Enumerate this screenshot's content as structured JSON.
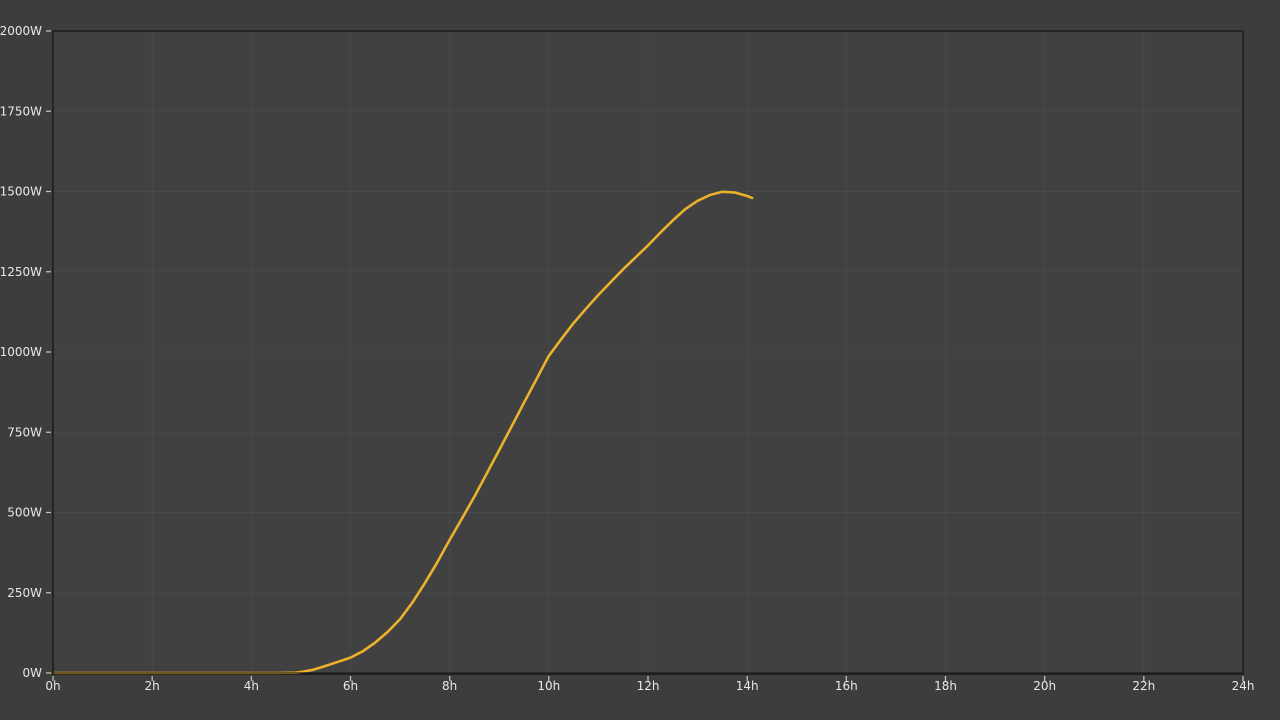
{
  "colors": {
    "page_background": "#3d3d3d",
    "plot_background": "#414141",
    "border": "#242424",
    "gridline": "rgba(255,255,255,0.045)",
    "tick_mark": "#c8c8c8",
    "tick_label": "#e8e8e8",
    "series_line": "#ecb22c",
    "baseline_dim_overlay": "rgba(26,26,26,0.6)"
  },
  "chart_data": {
    "type": "line",
    "title": "",
    "xlabel": "",
    "ylabel": "",
    "x_unit": "h",
    "y_unit": "W",
    "xlim": [
      0,
      24
    ],
    "ylim": [
      0,
      2000
    ],
    "grid": true,
    "legend": "none",
    "x_ticks": [
      {
        "value": 0,
        "label": "0h"
      },
      {
        "value": 2,
        "label": "2h"
      },
      {
        "value": 4,
        "label": "4h"
      },
      {
        "value": 6,
        "label": "6h"
      },
      {
        "value": 8,
        "label": "8h"
      },
      {
        "value": 10,
        "label": "10h"
      },
      {
        "value": 12,
        "label": "12h"
      },
      {
        "value": 14,
        "label": "14h"
      },
      {
        "value": 16,
        "label": "16h"
      },
      {
        "value": 18,
        "label": "18h"
      },
      {
        "value": 20,
        "label": "20h"
      },
      {
        "value": 22,
        "label": "22h"
      },
      {
        "value": 24,
        "label": "24h"
      }
    ],
    "y_ticks": [
      {
        "value": 0,
        "label": "0W"
      },
      {
        "value": 250,
        "label": "250W"
      },
      {
        "value": 500,
        "label": "500W"
      },
      {
        "value": 750,
        "label": "750W"
      },
      {
        "value": 1000,
        "label": "1000W"
      },
      {
        "value": 1250,
        "label": "1250W"
      },
      {
        "value": 1500,
        "label": "1500W"
      },
      {
        "value": 1750,
        "label": "1750W"
      },
      {
        "value": 2000,
        "label": "2000W"
      }
    ],
    "series": [
      {
        "name": "power",
        "color": "#ecb22c",
        "points": [
          {
            "x": 0,
            "y": 0
          },
          {
            "x": 0.5,
            "y": 0
          },
          {
            "x": 1,
            "y": 0
          },
          {
            "x": 1.5,
            "y": 0
          },
          {
            "x": 2,
            "y": 0
          },
          {
            "x": 2.5,
            "y": 0
          },
          {
            "x": 3,
            "y": 0
          },
          {
            "x": 3.5,
            "y": 0
          },
          {
            "x": 4,
            "y": 0
          },
          {
            "x": 4.5,
            "y": 0
          },
          {
            "x": 4.9,
            "y": 1
          },
          {
            "x": 5,
            "y": 3
          },
          {
            "x": 5.25,
            "y": 10
          },
          {
            "x": 5.5,
            "y": 22
          },
          {
            "x": 5.75,
            "y": 35
          },
          {
            "x": 6,
            "y": 48
          },
          {
            "x": 6.25,
            "y": 68
          },
          {
            "x": 6.5,
            "y": 95
          },
          {
            "x": 6.75,
            "y": 128
          },
          {
            "x": 7,
            "y": 168
          },
          {
            "x": 7.25,
            "y": 220
          },
          {
            "x": 7.5,
            "y": 280
          },
          {
            "x": 7.75,
            "y": 345
          },
          {
            "x": 8,
            "y": 415
          },
          {
            "x": 8.25,
            "y": 482
          },
          {
            "x": 8.5,
            "y": 550
          },
          {
            "x": 8.75,
            "y": 622
          },
          {
            "x": 9,
            "y": 695
          },
          {
            "x": 9.25,
            "y": 768
          },
          {
            "x": 9.5,
            "y": 842
          },
          {
            "x": 9.75,
            "y": 915
          },
          {
            "x": 10,
            "y": 988
          },
          {
            "x": 10.25,
            "y": 1040
          },
          {
            "x": 10.5,
            "y": 1090
          },
          {
            "x": 10.75,
            "y": 1135
          },
          {
            "x": 11,
            "y": 1178
          },
          {
            "x": 11.25,
            "y": 1218
          },
          {
            "x": 11.5,
            "y": 1258
          },
          {
            "x": 11.75,
            "y": 1295
          },
          {
            "x": 12,
            "y": 1332
          },
          {
            "x": 12.25,
            "y": 1372
          },
          {
            "x": 12.5,
            "y": 1410
          },
          {
            "x": 12.75,
            "y": 1445
          },
          {
            "x": 13,
            "y": 1471
          },
          {
            "x": 13.25,
            "y": 1489
          },
          {
            "x": 13.5,
            "y": 1499
          },
          {
            "x": 13.75,
            "y": 1497
          },
          {
            "x": 14,
            "y": 1486
          },
          {
            "x": 14.1,
            "y": 1480
          }
        ]
      }
    ]
  }
}
